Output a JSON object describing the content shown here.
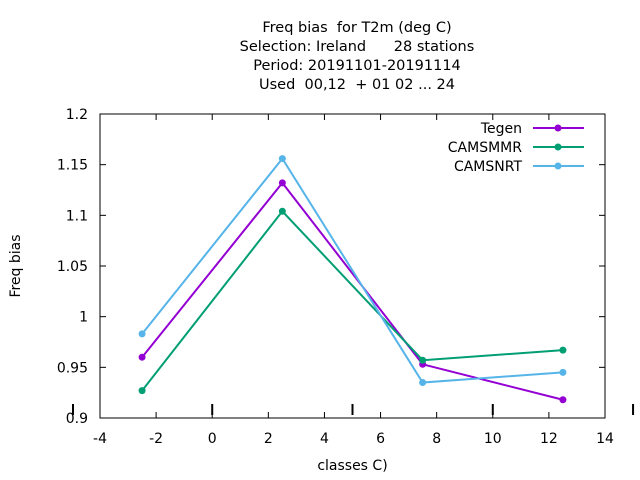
{
  "chart_data": {
    "type": "line",
    "title_lines": [
      "Freq bias  for T2m (deg C)",
      "Selection: Ireland      28 stations",
      "Period: 20191101-20191114",
      "Used  00,12  + 01 02 ... 24"
    ],
    "xlabel": "classes C)",
    "ylabel": "Freq bias",
    "xlim": [
      -4,
      14
    ],
    "ylim": [
      0.9,
      1.2
    ],
    "xticks": [
      -4,
      -2,
      0,
      2,
      4,
      6,
      8,
      10,
      12,
      14
    ],
    "xtick_labels": [
      "-4",
      "-2",
      "0",
      "2",
      "4",
      "6",
      "8",
      "10",
      "12",
      "14"
    ],
    "yticks": [
      0.9,
      0.95,
      1.0,
      1.05,
      1.1,
      1.15,
      1.2
    ],
    "ytick_labels": [
      "0.9",
      "0.95",
      "1",
      "1.05",
      "1.1",
      "1.15",
      "1.2"
    ],
    "class_boundaries": [
      0,
      5,
      10,
      15
    ],
    "grid": false,
    "legend_position": "top-right",
    "x": [
      -2.5,
      2.5,
      7.5,
      12.5
    ],
    "series": [
      {
        "name": "Tegen",
        "color": "#9400d3",
        "values": [
          0.96,
          1.132,
          0.953,
          0.918
        ]
      },
      {
        "name": "CAMSMMR",
        "color": "#009e73",
        "values": [
          0.927,
          1.104,
          0.957,
          0.967
        ]
      },
      {
        "name": "CAMSNRT",
        "color": "#56b4e9",
        "values": [
          0.983,
          1.156,
          0.935,
          0.945
        ]
      }
    ]
  }
}
